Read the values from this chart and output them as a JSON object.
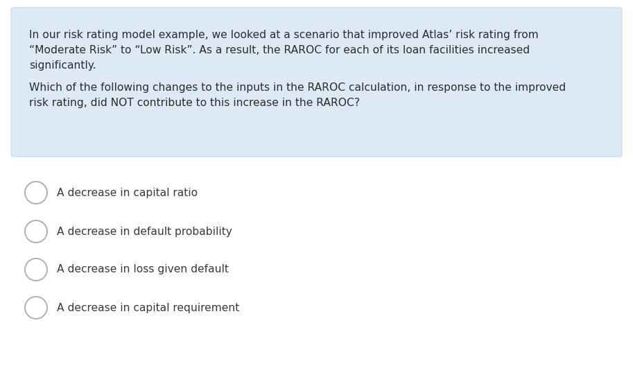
{
  "background_color": "#ffffff",
  "box_bg_color": "#ddeaf6",
  "box_border_color": "#c2d8ee",
  "box_text_lines": [
    "In our risk rating model example, we looked at a scenario that improved Atlas’ risk rating from",
    "“Moderate Risk” to “Low Risk”. As a result, the RAROC for each of its loan facilities increased",
    "significantly.",
    "",
    "Which of the following changes to the inputs in the RAROC calculation, in response to the improved",
    "risk rating, did NOT contribute to this increase in the RAROC?"
  ],
  "options": [
    "A decrease in capital ratio",
    "A decrease in default probability",
    "A decrease in loss given default",
    "A decrease in capital requirement"
  ],
  "text_color": "#2c2c2c",
  "option_text_color": "#3a3a3a",
  "circle_edge_color": "#b0b0b0",
  "circle_face_color": "#ffffff",
  "font_size_box": 11.2,
  "font_size_options": 11.2,
  "fig_width": 9.13,
  "fig_height": 5.31,
  "dpi": 100
}
